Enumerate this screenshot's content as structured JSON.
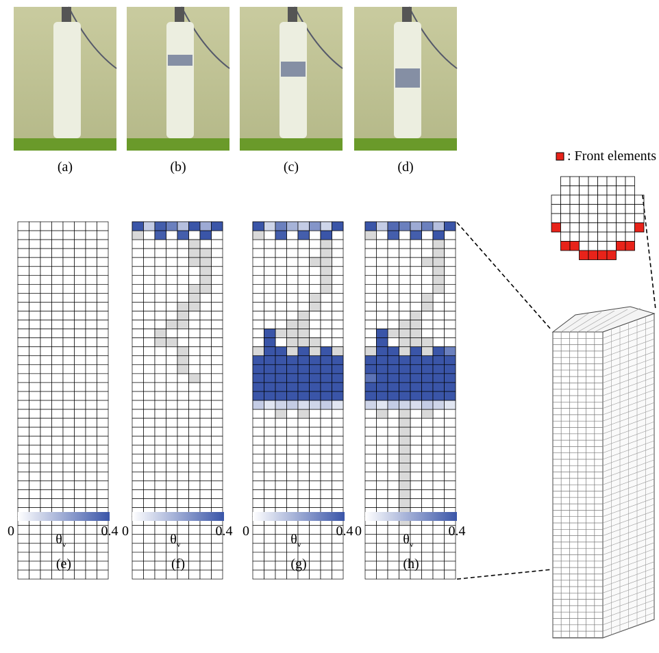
{
  "photos": [
    {
      "label": "(a)"
    },
    {
      "label": "(b)"
    },
    {
      "label": "(c)"
    },
    {
      "label": "(d)"
    }
  ],
  "legend": {
    "text": ": Front elements"
  },
  "panels": [
    {
      "label": "(e)",
      "rows": 40,
      "cols": 8,
      "cells": [],
      "gray": [],
      "colorbar": {
        "min": 0,
        "max": 0.4,
        "symbol": "θ",
        "subscript": "v"
      }
    },
    {
      "label": "(f)",
      "rows": 40,
      "cols": 8,
      "cells": [
        [
          0,
          0,
          0.4
        ],
        [
          0,
          1,
          0.12
        ],
        [
          0,
          2,
          0.38
        ],
        [
          0,
          3,
          0.3
        ],
        [
          0,
          4,
          0.15
        ],
        [
          0,
          5,
          0.4
        ],
        [
          0,
          6,
          0.2
        ],
        [
          0,
          7,
          0.4
        ],
        [
          1,
          2,
          0.38
        ],
        [
          1,
          4,
          0.38
        ],
        [
          1,
          6,
          0.4
        ]
      ],
      "gray": [
        [
          1,
          0
        ],
        [
          2,
          5
        ],
        [
          3,
          5
        ],
        [
          3,
          6
        ],
        [
          4,
          5
        ],
        [
          4,
          6
        ],
        [
          5,
          6
        ],
        [
          6,
          6
        ],
        [
          7,
          5
        ],
        [
          7,
          6
        ],
        [
          8,
          5
        ],
        [
          9,
          4
        ],
        [
          9,
          5
        ],
        [
          10,
          4
        ],
        [
          11,
          3
        ],
        [
          11,
          4
        ],
        [
          12,
          2
        ],
        [
          13,
          2
        ],
        [
          13,
          3
        ],
        [
          14,
          4
        ],
        [
          15,
          4
        ],
        [
          16,
          4
        ],
        [
          17,
          5
        ]
      ],
      "colorbar": {
        "min": 0,
        "max": 0.4,
        "symbol": "θ",
        "subscript": "v"
      }
    },
    {
      "label": "(g)",
      "rows": 40,
      "cols": 8,
      "cells": [
        [
          0,
          0,
          0.4
        ],
        [
          0,
          1,
          0.1
        ],
        [
          0,
          2,
          0.3
        ],
        [
          0,
          3,
          0.18
        ],
        [
          0,
          4,
          0.12
        ],
        [
          0,
          5,
          0.25
        ],
        [
          0,
          6,
          0.1
        ],
        [
          0,
          7,
          0.4
        ],
        [
          1,
          2,
          0.38
        ],
        [
          1,
          4,
          0.38
        ],
        [
          1,
          6,
          0.4
        ],
        [
          12,
          1,
          0.4
        ],
        [
          13,
          1,
          0.4
        ],
        [
          14,
          1,
          0.4
        ],
        [
          14,
          2,
          0.4
        ],
        [
          14,
          4,
          0.4
        ],
        [
          14,
          6,
          0.4
        ],
        [
          15,
          0,
          0.4
        ],
        [
          15,
          1,
          0.4
        ],
        [
          15,
          2,
          0.4
        ],
        [
          15,
          3,
          0.4
        ],
        [
          15,
          4,
          0.4
        ],
        [
          15,
          5,
          0.4
        ],
        [
          15,
          6,
          0.4
        ],
        [
          15,
          7,
          0.4
        ],
        [
          16,
          0,
          0.4
        ],
        [
          16,
          1,
          0.4
        ],
        [
          16,
          2,
          0.4
        ],
        [
          16,
          3,
          0.4
        ],
        [
          16,
          4,
          0.4
        ],
        [
          16,
          5,
          0.4
        ],
        [
          16,
          6,
          0.4
        ],
        [
          16,
          7,
          0.4
        ],
        [
          17,
          0,
          0.4
        ],
        [
          17,
          1,
          0.4
        ],
        [
          17,
          2,
          0.4
        ],
        [
          17,
          3,
          0.4
        ],
        [
          17,
          4,
          0.4
        ],
        [
          17,
          5,
          0.4
        ],
        [
          17,
          6,
          0.4
        ],
        [
          17,
          7,
          0.4
        ],
        [
          18,
          0,
          0.4
        ],
        [
          18,
          1,
          0.4
        ],
        [
          18,
          2,
          0.4
        ],
        [
          18,
          3,
          0.4
        ],
        [
          18,
          4,
          0.4
        ],
        [
          18,
          5,
          0.4
        ],
        [
          18,
          6,
          0.4
        ],
        [
          18,
          7,
          0.4
        ],
        [
          19,
          0,
          0.4
        ],
        [
          19,
          1,
          0.4
        ],
        [
          19,
          2,
          0.4
        ],
        [
          19,
          3,
          0.4
        ],
        [
          19,
          4,
          0.4
        ],
        [
          19,
          5,
          0.4
        ],
        [
          19,
          6,
          0.4
        ],
        [
          19,
          7,
          0.4
        ],
        [
          20,
          0,
          0.12
        ],
        [
          20,
          1,
          0.06
        ],
        [
          20,
          2,
          0.1
        ],
        [
          20,
          3,
          0.12
        ],
        [
          20,
          4,
          0.08
        ],
        [
          20,
          5,
          0.1
        ],
        [
          20,
          6,
          0.12
        ],
        [
          20,
          7,
          0.06
        ]
      ],
      "gray": [
        [
          1,
          0
        ],
        [
          2,
          6
        ],
        [
          3,
          6
        ],
        [
          4,
          5
        ],
        [
          4,
          6
        ],
        [
          5,
          6
        ],
        [
          6,
          6
        ],
        [
          7,
          6
        ],
        [
          8,
          5
        ],
        [
          9,
          5
        ],
        [
          10,
          4
        ],
        [
          11,
          3
        ],
        [
          11,
          4
        ],
        [
          12,
          2
        ],
        [
          12,
          3
        ],
        [
          12,
          4
        ],
        [
          13,
          3
        ],
        [
          13,
          4
        ],
        [
          13,
          5
        ],
        [
          14,
          0
        ],
        [
          14,
          3
        ],
        [
          14,
          5
        ],
        [
          14,
          7
        ],
        [
          21,
          2
        ],
        [
          21,
          4
        ]
      ],
      "colorbar": {
        "min": 0,
        "max": 0.4,
        "symbol": "θ",
        "subscript": "v"
      }
    },
    {
      "label": "(h)",
      "rows": 40,
      "cols": 8,
      "cells": [
        [
          0,
          0,
          0.4
        ],
        [
          0,
          1,
          0.12
        ],
        [
          0,
          2,
          0.35
        ],
        [
          0,
          3,
          0.3
        ],
        [
          0,
          4,
          0.2
        ],
        [
          0,
          5,
          0.3
        ],
        [
          0,
          6,
          0.15
        ],
        [
          0,
          7,
          0.4
        ],
        [
          1,
          2,
          0.38
        ],
        [
          1,
          4,
          0.38
        ],
        [
          1,
          6,
          0.4
        ],
        [
          12,
          1,
          0.4
        ],
        [
          13,
          1,
          0.4
        ],
        [
          14,
          1,
          0.4
        ],
        [
          14,
          2,
          0.4
        ],
        [
          14,
          4,
          0.4
        ],
        [
          14,
          6,
          0.4
        ],
        [
          14,
          7,
          0.3
        ],
        [
          15,
          0,
          0.4
        ],
        [
          15,
          1,
          0.4
        ],
        [
          15,
          2,
          0.4
        ],
        [
          15,
          3,
          0.4
        ],
        [
          15,
          4,
          0.4
        ],
        [
          15,
          5,
          0.4
        ],
        [
          15,
          6,
          0.4
        ],
        [
          15,
          7,
          0.4
        ],
        [
          16,
          0,
          0.4
        ],
        [
          16,
          1,
          0.4
        ],
        [
          16,
          2,
          0.4
        ],
        [
          16,
          3,
          0.4
        ],
        [
          16,
          4,
          0.4
        ],
        [
          16,
          5,
          0.4
        ],
        [
          16,
          6,
          0.4
        ],
        [
          16,
          7,
          0.4
        ],
        [
          17,
          0,
          0.33
        ],
        [
          17,
          1,
          0.4
        ],
        [
          17,
          2,
          0.4
        ],
        [
          17,
          3,
          0.4
        ],
        [
          17,
          4,
          0.4
        ],
        [
          17,
          5,
          0.4
        ],
        [
          17,
          6,
          0.4
        ],
        [
          17,
          7,
          0.4
        ],
        [
          18,
          0,
          0.4
        ],
        [
          18,
          1,
          0.4
        ],
        [
          18,
          2,
          0.4
        ],
        [
          18,
          3,
          0.4
        ],
        [
          18,
          4,
          0.4
        ],
        [
          18,
          5,
          0.4
        ],
        [
          18,
          6,
          0.4
        ],
        [
          18,
          7,
          0.4
        ],
        [
          19,
          0,
          0.4
        ],
        [
          19,
          1,
          0.4
        ],
        [
          19,
          2,
          0.4
        ],
        [
          19,
          3,
          0.4
        ],
        [
          19,
          4,
          0.4
        ],
        [
          19,
          5,
          0.4
        ],
        [
          19,
          6,
          0.4
        ],
        [
          19,
          7,
          0.4
        ],
        [
          20,
          0,
          0.1
        ],
        [
          20,
          1,
          0.06
        ],
        [
          20,
          2,
          0.12
        ],
        [
          20,
          3,
          0.1
        ],
        [
          20,
          4,
          0.08
        ],
        [
          20,
          5,
          0.12
        ],
        [
          20,
          6,
          0.1
        ],
        [
          20,
          7,
          0.06
        ]
      ],
      "gray": [
        [
          1,
          0
        ],
        [
          2,
          6
        ],
        [
          3,
          6
        ],
        [
          4,
          5
        ],
        [
          4,
          6
        ],
        [
          5,
          6
        ],
        [
          6,
          6
        ],
        [
          7,
          6
        ],
        [
          8,
          5
        ],
        [
          9,
          5
        ],
        [
          10,
          4
        ],
        [
          11,
          3
        ],
        [
          11,
          4
        ],
        [
          12,
          2
        ],
        [
          12,
          3
        ],
        [
          12,
          4
        ],
        [
          13,
          3
        ],
        [
          13,
          4
        ],
        [
          13,
          5
        ],
        [
          14,
          0
        ],
        [
          14,
          3
        ],
        [
          14,
          5
        ],
        [
          21,
          1
        ],
        [
          21,
          3
        ],
        [
          21,
          5
        ],
        [
          22,
          3
        ],
        [
          23,
          3
        ],
        [
          24,
          3
        ],
        [
          25,
          3
        ],
        [
          26,
          3
        ],
        [
          27,
          3
        ],
        [
          28,
          3
        ],
        [
          29,
          3
        ],
        [
          30,
          3
        ],
        [
          31,
          3
        ],
        [
          32,
          3
        ],
        [
          33,
          3
        ]
      ],
      "colorbar": {
        "min": 0,
        "max": 0.4,
        "symbol": "θ",
        "subscript": "v"
      }
    }
  ]
}
